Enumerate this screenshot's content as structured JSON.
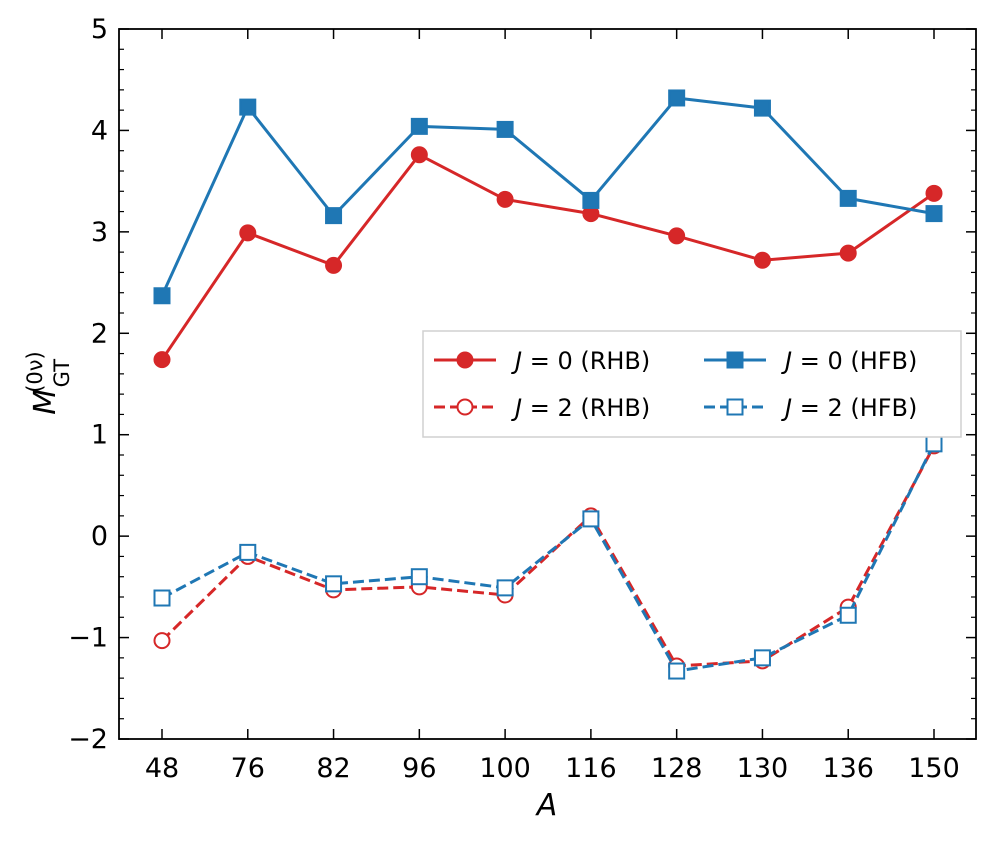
{
  "chart_data": {
    "type": "line",
    "title": "",
    "xlabel": "A",
    "ylabel": {
      "base": "M",
      "sup": "(0ν)",
      "sub": "GT"
    },
    "categories": [
      "48",
      "76",
      "82",
      "96",
      "100",
      "116",
      "128",
      "130",
      "136",
      "150"
    ],
    "ylim": [
      -2,
      5
    ],
    "yticks": [
      -2,
      -1,
      0,
      1,
      2,
      3,
      4,
      5
    ],
    "ytick_labels": [
      "−2",
      "−1",
      "0",
      "1",
      "2",
      "3",
      "4",
      "5"
    ],
    "legend_position": "center-right",
    "series": [
      {
        "name_j": "J",
        "name_rest": " = 0 (RHB)",
        "color": "#d62728",
        "linestyle": "solid",
        "marker": "circle",
        "filled": true,
        "values": [
          1.74,
          2.99,
          2.67,
          3.76,
          3.32,
          3.18,
          2.96,
          2.72,
          2.79,
          3.38
        ]
      },
      {
        "name_j": "J",
        "name_rest": " = 0 (HFB)",
        "color": "#1f77b4",
        "linestyle": "solid",
        "marker": "square",
        "filled": true,
        "values": [
          2.37,
          4.23,
          3.16,
          4.04,
          4.01,
          3.31,
          4.32,
          4.22,
          3.33,
          3.18
        ]
      },
      {
        "name_j": "J",
        "name_rest": " = 2 (RHB)",
        "color": "#d62728",
        "linestyle": "dashed",
        "marker": "circle",
        "filled": false,
        "values": [
          -1.03,
          -0.2,
          -0.53,
          -0.5,
          -0.58,
          0.2,
          -1.28,
          -1.23,
          -0.7,
          0.89
        ]
      },
      {
        "name_j": "J",
        "name_rest": " = 2 (HFB)",
        "color": "#1f77b4",
        "linestyle": "dashed",
        "marker": "square",
        "filled": false,
        "values": [
          -0.61,
          -0.16,
          -0.47,
          -0.4,
          -0.51,
          0.17,
          -1.33,
          -1.2,
          -0.78,
          0.91
        ]
      }
    ]
  }
}
